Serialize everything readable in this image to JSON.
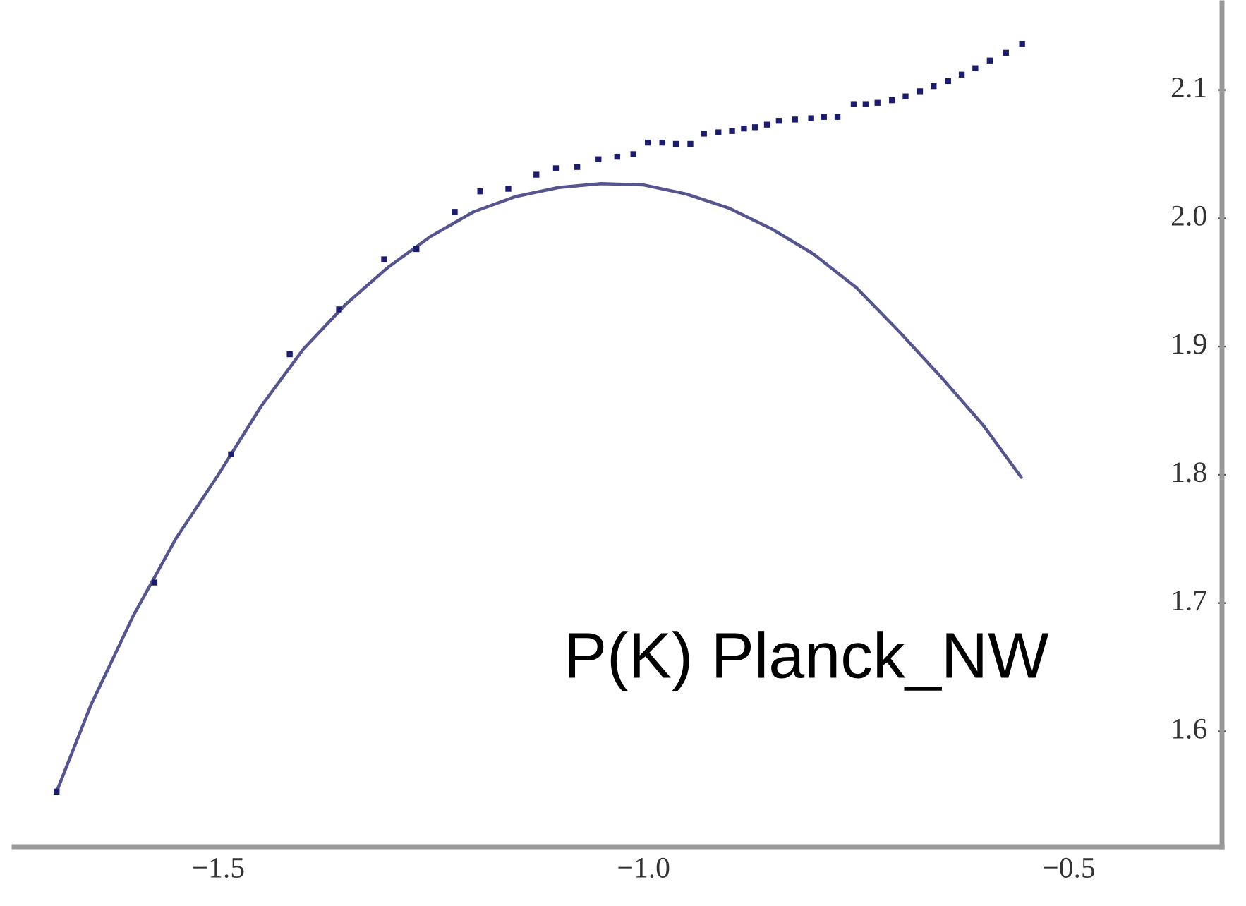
{
  "chart_data": {
    "type": "scatter",
    "annotations": [
      "P(K) Planck_NW"
    ],
    "series": [
      {
        "color": "#1c1c6e",
        "marker": "square",
        "x": [
          -1.69,
          -1.575,
          -1.485,
          -1.416,
          -1.358,
          -1.305,
          -1.267,
          -1.222,
          -1.192,
          -1.159,
          -1.126,
          -1.103,
          -1.078,
          -1.053,
          -1.031,
          -1.012,
          -0.995,
          -0.978,
          -0.962,
          -0.945,
          -0.929,
          -0.912,
          -0.896,
          -0.882,
          -0.869,
          -0.855,
          -0.841,
          -0.822,
          -0.803,
          -0.788,
          -0.772,
          -0.753,
          -0.739,
          -0.725,
          -0.708,
          -0.692,
          -0.675,
          -0.659,
          -0.642,
          -0.626,
          -0.61,
          -0.593,
          -0.574,
          -0.555
        ],
        "values": [
          1.553,
          1.716,
          1.816,
          1.894,
          1.929,
          1.968,
          1.976,
          2.005,
          2.021,
          2.023,
          2.034,
          2.039,
          2.04,
          2.046,
          2.048,
          2.05,
          2.059,
          2.059,
          2.058,
          2.058,
          2.066,
          2.067,
          2.068,
          2.07,
          2.071,
          2.073,
          2.076,
          2.077,
          2.078,
          2.079,
          2.079,
          2.089,
          2.089,
          2.09,
          2.092,
          2.095,
          2.099,
          2.103,
          2.107,
          2.112,
          2.117,
          2.123,
          2.129,
          2.136
        ]
      },
      {
        "type": "line",
        "color": "#55558f",
        "line_style": "solid",
        "x": [
          -1.69,
          -1.65,
          -1.6,
          -1.55,
          -1.5,
          -1.45,
          -1.4,
          -1.35,
          -1.3,
          -1.25,
          -1.2,
          -1.15,
          -1.1,
          -1.05,
          -1.0,
          -0.95,
          -0.9,
          -0.85,
          -0.8,
          -0.75,
          -0.7,
          -0.65,
          -0.6,
          -0.556
        ],
        "values": [
          1.553,
          1.62,
          1.69,
          1.75,
          1.8,
          1.853,
          1.898,
          1.933,
          1.962,
          1.986,
          2.005,
          2.017,
          2.024,
          2.027,
          2.026,
          2.019,
          2.008,
          1.992,
          1.972,
          1.946,
          1.912,
          1.876,
          1.838,
          1.798
        ]
      }
    ],
    "xlim": [
      -1.74,
      -0.32
    ],
    "xticks": [
      {
        "value": -1.5,
        "label": "−1.5"
      },
      {
        "value": -1.0,
        "label": "−1.0"
      },
      {
        "value": -0.5,
        "label": "−0.5"
      }
    ],
    "ylim": [
      1.51,
      2.168
    ],
    "yticks": [
      {
        "value": 1.6,
        "label": "1.6"
      },
      {
        "value": 1.7,
        "label": "1.7"
      },
      {
        "value": 1.8,
        "label": "1.8"
      },
      {
        "value": 1.9,
        "label": "1.9"
      },
      {
        "value": 2.0,
        "label": "2.0"
      },
      {
        "value": 2.1,
        "label": "2.1"
      }
    ],
    "grid": false,
    "legend": false
  }
}
